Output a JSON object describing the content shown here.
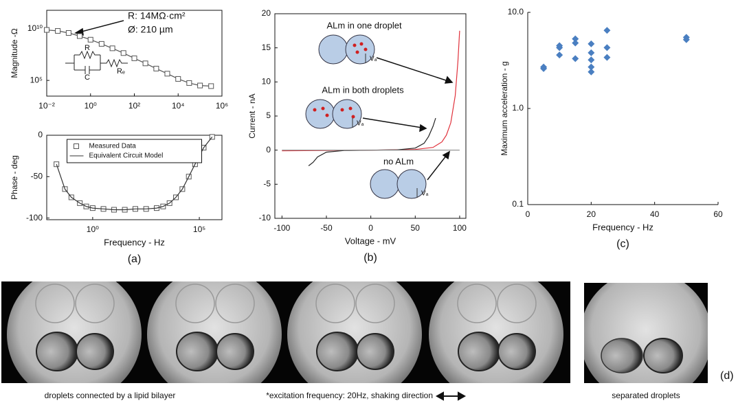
{
  "chart_data": [
    {
      "type": "line",
      "ylabel": "Magnitude -Ω",
      "xscale": "log",
      "yscale": "log",
      "xlim": [
        0.01,
        1000000
      ],
      "ylim": [
        3000,
        630000000000
      ],
      "xticks": [
        {
          "value": 0.01,
          "label": "10⁻²"
        },
        {
          "value": 1,
          "label": "10⁰"
        },
        {
          "value": 100,
          "label": "10²"
        },
        {
          "value": 10000,
          "label": "10⁴"
        },
        {
          "value": 1000000,
          "label": "10⁶"
        }
      ],
      "yticks": [
        {
          "value": 100000,
          "label": "10⁵"
        },
        {
          "value": 10000000000,
          "label": "10¹⁰"
        }
      ],
      "x": [
        0.01,
        0.032,
        0.1,
        0.32,
        1,
        3.2,
        10,
        32,
        100,
        320,
        1000,
        3200,
        10000,
        32000,
        100000,
        320000
      ],
      "series": [
        {
          "color": "#555555",
          "marker": "square",
          "line": true,
          "values": [
            7900000000.0,
            6300000000.0,
            4000000000.0,
            2000000000.0,
            890000000.0,
            350000000.0,
            130000000.0,
            45000000.0,
            14000000.0,
            4500000.0,
            1400000.0,
            450000.0,
            140000.0,
            56000.0,
            32000.0,
            28000.0
          ]
        }
      ],
      "annotations": [
        "R: 14MΩ·cm²",
        "Ø: 210 µm"
      ],
      "circuit_labels": [
        "R",
        "C",
        "Rₑ"
      ]
    },
    {
      "type": "line",
      "ylabel": "Phase - deg",
      "xlabel": "Frequency - Hz",
      "panel_label": "(a)",
      "xscale": "log",
      "xlim": [
        0.007,
        1150000
      ],
      "ylim": [
        -102,
        0
      ],
      "xticks": [
        {
          "value": 1,
          "label": "10⁰"
        },
        {
          "value": 100000,
          "label": "10⁵"
        }
      ],
      "yticks": [
        -100,
        -50,
        0
      ],
      "legend": "upper center",
      "x": [
        0.02,
        0.05,
        0.1,
        0.25,
        0.5,
        1,
        3.2,
        10,
        32,
        100,
        320,
        1000,
        2000,
        4000,
        8000,
        16000,
        32000,
        63000,
        160000,
        400000
      ],
      "series": [
        {
          "name": "Measured Data",
          "color": "#555555",
          "marker": "square",
          "line": false,
          "values": [
            -35,
            -65,
            -75,
            -82,
            -86,
            -88,
            -89,
            -90,
            -90,
            -89,
            -89,
            -88,
            -86,
            -82,
            -75,
            -65,
            -50,
            -35,
            -15,
            -2
          ]
        },
        {
          "name": "Equivalent Circuit Model",
          "color": "#333333",
          "line": true,
          "values": [
            -35,
            -65,
            -75,
            -82,
            -86,
            -88,
            -89,
            -90,
            -90,
            -89,
            -89,
            -88,
            -86,
            -82,
            -75,
            -65,
            -50,
            -35,
            -15,
            -2
          ]
        }
      ]
    },
    {
      "type": "line",
      "ylabel": "Current - nA",
      "xlabel": "Voltage - mV",
      "panel_label": "(b)",
      "xlim": [
        -108,
        107
      ],
      "ylim": [
        -10,
        20
      ],
      "xticks": [
        -100,
        -50,
        0,
        50,
        100
      ],
      "yticks": [
        -10,
        -5,
        0,
        5,
        10,
        15,
        20
      ],
      "electrode_label": "Vₐ",
      "series": [
        {
          "name": "ALm in one droplet",
          "color": "#e0303a",
          "x": [
            -100,
            -50,
            0,
            50,
            70,
            80,
            85,
            90,
            95,
            98,
            100
          ],
          "values": [
            -0.1,
            -0.05,
            0,
            0.1,
            0.4,
            1.2,
            2.2,
            4,
            8,
            13,
            17.5
          ]
        },
        {
          "name": "ALm in both droplets",
          "color": "#222222",
          "x": [
            -70,
            -65,
            -60,
            -50,
            -30,
            0,
            30,
            50,
            60,
            65,
            70,
            73
          ],
          "values": [
            -2.3,
            -1.8,
            -1,
            -0.3,
            -0.05,
            0,
            0.05,
            0.3,
            1,
            2,
            3.5,
            4.7
          ]
        },
        {
          "name": "no ALm",
          "color": "#888888",
          "x": [
            -100,
            100
          ],
          "values": [
            0,
            0
          ]
        }
      ]
    },
    {
      "type": "scatter",
      "ylabel": "Maximum acceleration - g",
      "xlabel": "Frequency - Hz",
      "panel_label": "(c)",
      "yscale": "log",
      "xlim": [
        0,
        60
      ],
      "ylim": [
        0.1,
        10
      ],
      "xticks": [
        0,
        20,
        40,
        60
      ],
      "yticks": [
        0.1,
        {
          "value": 1,
          "label": "1.0"
        },
        {
          "value": 10,
          "label": "10.0"
        }
      ],
      "color": "#4a7fc1",
      "x": [
        5,
        5,
        10,
        10,
        10,
        15,
        15,
        15,
        20,
        20,
        20,
        20,
        20,
        25,
        25,
        25,
        50,
        50
      ],
      "values": [
        2.7,
        2.6,
        4.5,
        4.3,
        3.6,
        5.3,
        4.8,
        3.3,
        4.7,
        3.8,
        3.2,
        2.7,
        2.4,
        6.5,
        4.3,
        3.4,
        5.5,
        5.2
      ]
    }
  ],
  "photos": {
    "captions": [
      "droplets connected by a lipid bilayer",
      "*excitation frequency:  20Hz, shaking direction",
      "separated droplets"
    ],
    "panel_label": "(d)"
  }
}
